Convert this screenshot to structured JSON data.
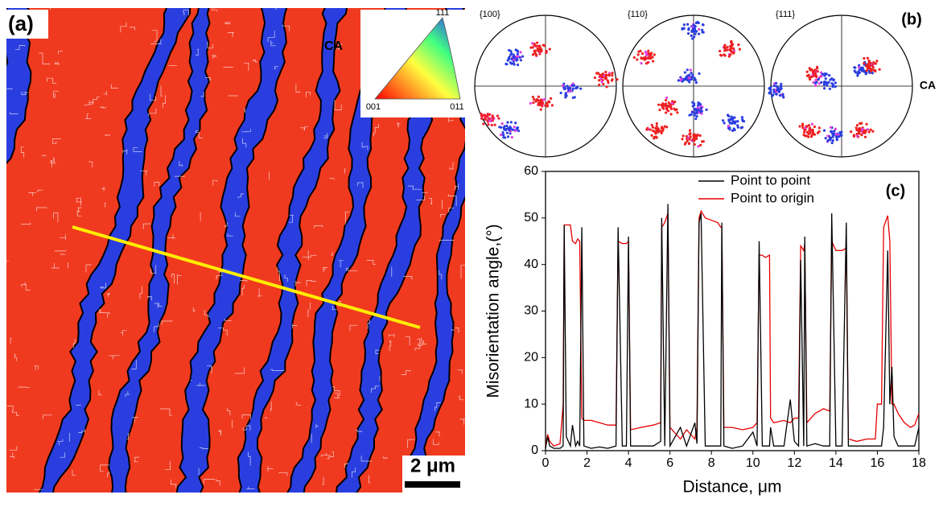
{
  "chart_data": {
    "type": "line",
    "panel_label": "(c)",
    "x_label": "Distance, μm",
    "y_label": "Misorientation angle,(°)",
    "x": [
      0.0,
      0.1,
      0.2,
      0.4,
      0.7,
      0.85,
      0.9,
      1.0,
      1.2,
      1.3,
      1.45,
      1.55,
      1.65,
      1.75,
      1.85,
      2.2,
      2.6,
      3.0,
      3.4,
      3.5,
      3.7,
      3.9,
      4.0,
      4.1,
      4.6,
      5.2,
      5.55,
      5.6,
      5.75,
      5.9,
      6.0,
      6.5,
      6.8,
      7.2,
      7.3,
      7.4,
      7.5,
      7.7,
      8.0,
      8.3,
      8.45,
      8.5,
      8.6,
      9.0,
      9.5,
      10.0,
      10.2,
      10.3,
      10.45,
      10.6,
      10.8,
      10.85,
      11.0,
      11.5,
      11.8,
      12.0,
      12.2,
      12.3,
      12.45,
      12.5,
      12.6,
      13.0,
      13.4,
      13.7,
      13.8,
      14.0,
      14.3,
      14.5,
      14.6,
      15.0,
      15.5,
      15.9,
      16.0,
      16.2,
      16.3,
      16.5,
      16.6,
      16.7,
      16.8,
      17.0,
      17.3,
      17.6,
      17.8,
      18.0
    ],
    "series": [
      {
        "name": "Point to point",
        "color": "#000000",
        "values": [
          0.5,
          3,
          1,
          0.5,
          0.5,
          1,
          48.5,
          3,
          1,
          5.5,
          1,
          2,
          1,
          48,
          1,
          0.5,
          0.8,
          0.5,
          1,
          48,
          1,
          1,
          46,
          1,
          1,
          1,
          2,
          50,
          1,
          53,
          1,
          5,
          1,
          6,
          1.5,
          49,
          51,
          1,
          1,
          1,
          1,
          49,
          1,
          0.5,
          1,
          4,
          1,
          45,
          1,
          1,
          1,
          5,
          1,
          1,
          11,
          2,
          1,
          41,
          1,
          46,
          1,
          1.5,
          1,
          1,
          51,
          1,
          1,
          49,
          1,
          1,
          1,
          1,
          1,
          1,
          5,
          43,
          10,
          18,
          3,
          1,
          1,
          1,
          1,
          5
        ]
      },
      {
        "name": "Point to origin",
        "color": "#e60000",
        "values": [
          1,
          3.5,
          2,
          1,
          1.5,
          10,
          48.5,
          48.5,
          48.5,
          45,
          44.5,
          45.5,
          45,
          7,
          6.5,
          6.5,
          6,
          5.5,
          5.5,
          45,
          44.5,
          44.5,
          45,
          4.5,
          5,
          5.5,
          6,
          48,
          49,
          51,
          5,
          2.5,
          4.5,
          2.5,
          5,
          50,
          51.5,
          50,
          49.5,
          49,
          48,
          48,
          5,
          5,
          4.5,
          5,
          6,
          42,
          42,
          41.5,
          42,
          7,
          6,
          6.5,
          6,
          7,
          7,
          44,
          43,
          44.5,
          6,
          8,
          9,
          8.5,
          45,
          43,
          43,
          43.5,
          2.5,
          2,
          2.5,
          2.5,
          10,
          10,
          48,
          50.5,
          45,
          10,
          10,
          8,
          6,
          5,
          5.5,
          8
        ]
      }
    ],
    "xlim": [
      0,
      18
    ],
    "xticks": [
      0,
      2,
      4,
      6,
      8,
      10,
      12,
      14,
      16,
      18
    ],
    "ylim": [
      0,
      60
    ],
    "yticks": [
      0,
      10,
      20,
      30,
      40,
      50,
      60
    ],
    "legend": "top"
  },
  "panel_a": {
    "label": "(a)",
    "ipf_top": "111",
    "ipf_left": "001",
    "ipf_right": "011",
    "ipf_axis": "CA",
    "scale_bar": "2 μm"
  },
  "panel_b": {
    "label": "(b)",
    "pole_figures": [
      "{100}",
      "{110}",
      "{111}"
    ],
    "axis": "CA"
  }
}
